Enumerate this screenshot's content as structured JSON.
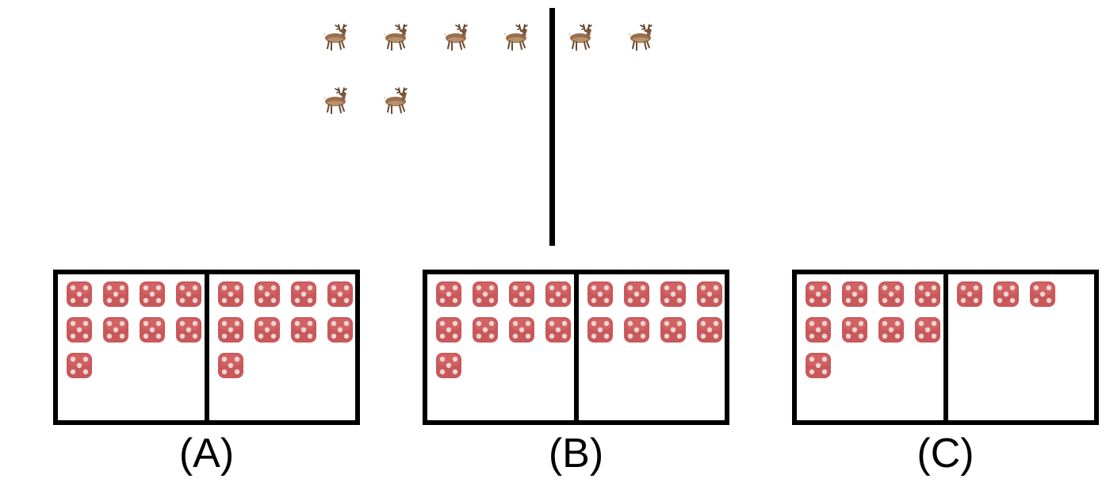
{
  "top": {
    "deer_icon": "deer-icon",
    "deer_rows": [
      6,
      2
    ],
    "colors": {
      "divider": "#000000"
    }
  },
  "options": [
    {
      "label": "(A)",
      "left_count": 9,
      "right_count": 9
    },
    {
      "label": "(B)",
      "left_count": 9,
      "right_count": 8
    },
    {
      "label": "(C)",
      "left_count": 9,
      "right_count": 3
    }
  ],
  "die_icon": "die-five-icon",
  "colors": {
    "die": "#c9585a",
    "die_pip": "#e9d7d4",
    "frame": "#000000"
  }
}
